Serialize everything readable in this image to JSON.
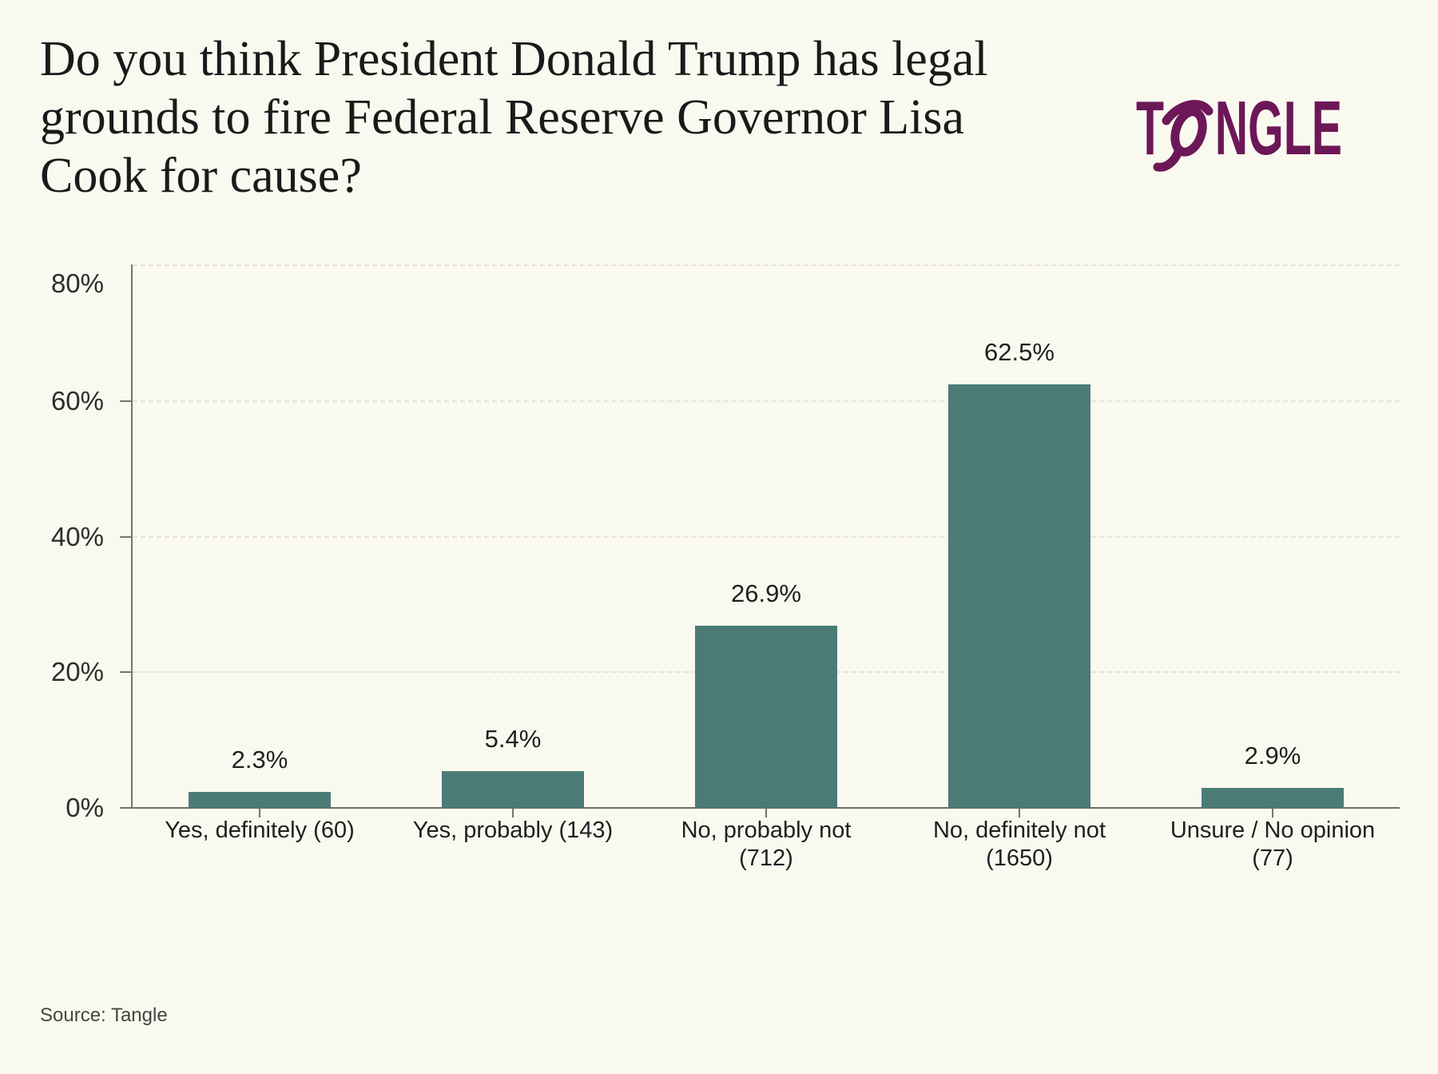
{
  "header": {
    "title": "Do you think President Donald Trump has legal\ngrounds to fire Federal Reserve Governor Lisa\nCook for cause?"
  },
  "logo": {
    "part1": "T",
    "part2": "NGLE",
    "full_text": "TANGLE",
    "color": "#6C1758"
  },
  "chart_data": {
    "type": "bar",
    "title": "Do you think President Donald Trump has legal grounds to fire Federal Reserve Governor Lisa Cook for cause?",
    "categories": [
      "Yes, definitely (60)",
      "Yes, probably (143)",
      "No, probably not (712)",
      "No, definitely not (1650)",
      "Unsure / No opinion (77)"
    ],
    "category_lines": [
      "Yes, definitely (60)",
      "Yes, probably (143)",
      "No, probably not\n(712)",
      "No, definitely not\n(1650)",
      "Unsure / No opinion\n(77)"
    ],
    "values": [
      2.3,
      5.4,
      26.9,
      62.5,
      2.9
    ],
    "counts": [
      60,
      143,
      712,
      1650,
      77
    ],
    "value_labels": [
      "2.3%",
      "5.4%",
      "26.9%",
      "62.5%",
      "2.9%"
    ],
    "yticks": [
      0,
      20,
      40,
      60,
      80
    ],
    "ytick_labels": [
      "0%",
      "20%",
      "40%",
      "60%",
      "80%"
    ],
    "ylim": [
      0,
      80
    ],
    "xlabel": "",
    "ylabel": "",
    "grid": "horizontal-dashed",
    "legend": "none",
    "bar_color": "#4A7C75"
  },
  "footer": {
    "source": "Source: Tangle"
  }
}
